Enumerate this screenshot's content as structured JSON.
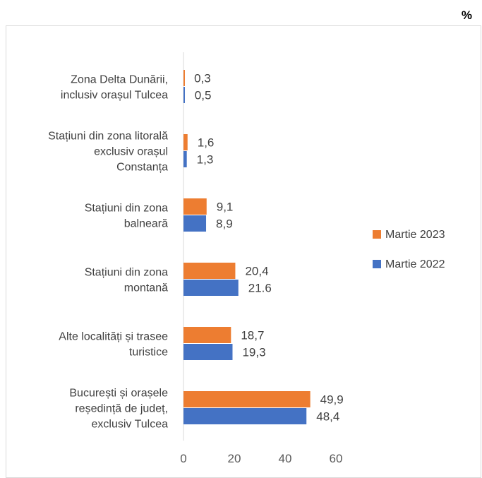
{
  "unit": "%",
  "chart_data": {
    "type": "bar",
    "orientation": "horizontal",
    "categories": [
      [
        "Zona Delta Dunării,",
        "inclusiv orașul Tulcea"
      ],
      [
        "Stațiuni din zona litorală",
        "exclusiv orașul",
        "Constanța"
      ],
      [
        "Stațiuni din zona",
        "balneară"
      ],
      [
        "Stațiuni din zona",
        "montană"
      ],
      [
        "Alte localități și trasee",
        "turistice"
      ],
      [
        "București și orașele",
        "reședință de județ,",
        "exclusiv Tulcea"
      ]
    ],
    "series": [
      {
        "name": "Martie 2023",
        "color": "#ed7d31",
        "values": [
          0.3,
          1.6,
          9.1,
          20.4,
          18.7,
          49.9
        ],
        "labels": [
          "0,3",
          "1,6",
          "9,1",
          "20,4",
          "18,7",
          "49,9"
        ]
      },
      {
        "name": "Martie 2022",
        "color": "#4472c4",
        "values": [
          0.5,
          1.3,
          8.9,
          21.6,
          19.3,
          48.4
        ],
        "labels": [
          "0,5",
          "1,3",
          "8,9",
          "21.6",
          "19,3",
          "48,4"
        ]
      }
    ],
    "xlim": [
      0,
      60
    ],
    "xticks": [
      "0",
      "20",
      "40",
      "60"
    ],
    "legend_position": "right",
    "grid": false
  }
}
